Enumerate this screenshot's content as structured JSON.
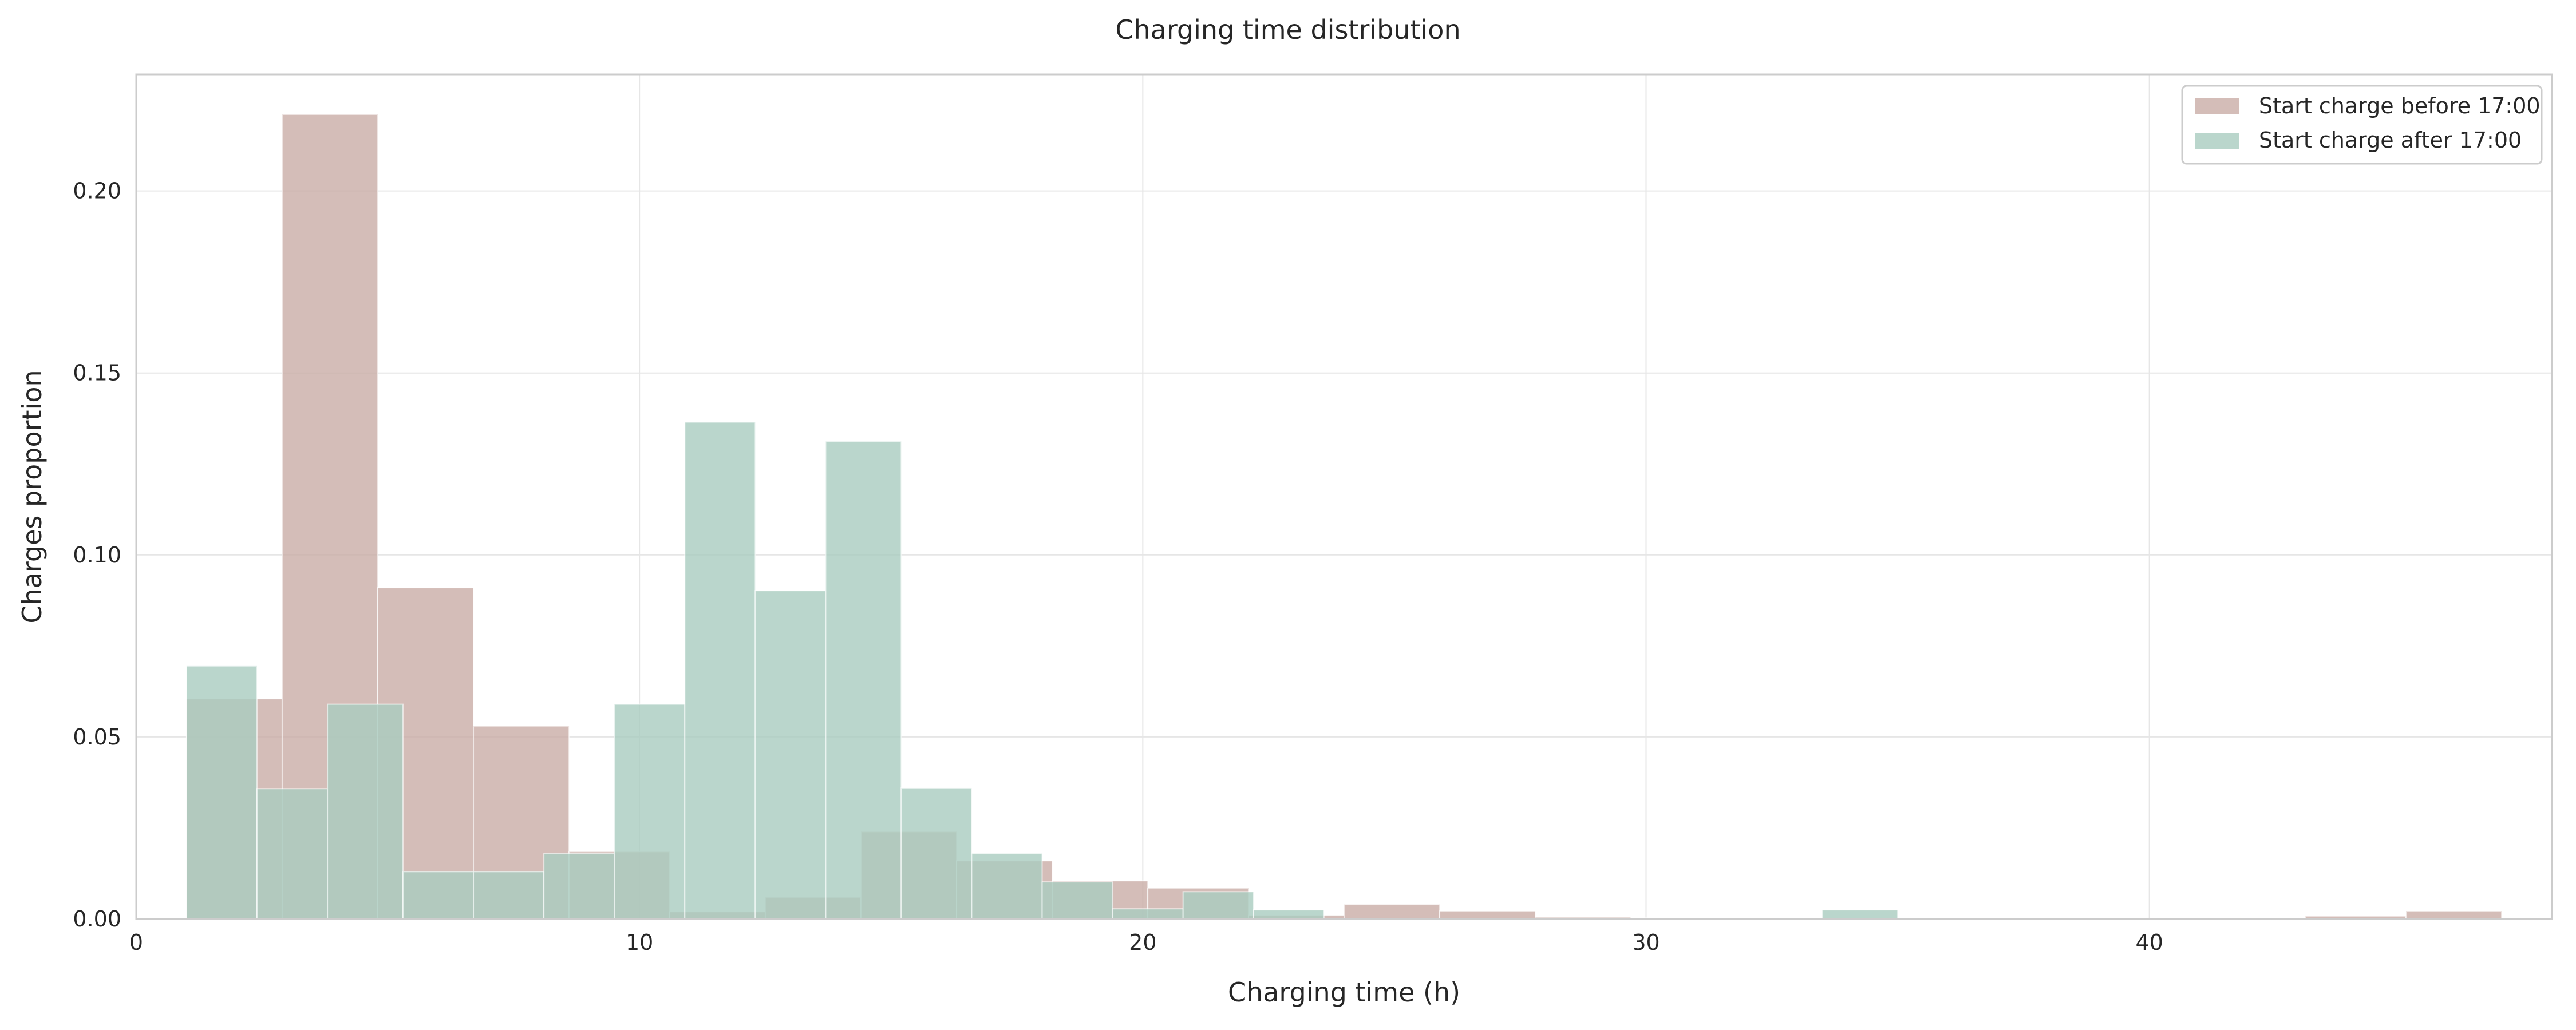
{
  "chart_data": {
    "type": "bar",
    "title": "Charging time distribution",
    "xlabel": "Charging time (h)",
    "ylabel": "Charges proportion",
    "xlim": [
      0,
      48
    ],
    "ylim": [
      0,
      0.232
    ],
    "xticks": [
      0,
      10,
      20,
      30,
      40
    ],
    "yticks": [
      0.0,
      0.05,
      0.1,
      0.15,
      0.2
    ],
    "ytick_labels": [
      "0.00",
      "0.05",
      "0.10",
      "0.15",
      "0.20"
    ],
    "grid": true,
    "legend_position": "top-right",
    "series": [
      {
        "name": "Start charge before 17:00",
        "color": "#c9aca6",
        "bins": [
          {
            "x0": 1.0,
            "x1": 2.9,
            "y": 0.0605
          },
          {
            "x0": 2.9,
            "x1": 4.8,
            "y": 0.221
          },
          {
            "x0": 4.8,
            "x1": 6.7,
            "y": 0.091
          },
          {
            "x0": 6.7,
            "x1": 8.6,
            "y": 0.053
          },
          {
            "x0": 8.6,
            "x1": 10.6,
            "y": 0.0185
          },
          {
            "x0": 10.6,
            "x1": 12.5,
            "y": 0.002
          },
          {
            "x0": 12.5,
            "x1": 14.4,
            "y": 0.006
          },
          {
            "x0": 14.4,
            "x1": 16.3,
            "y": 0.024
          },
          {
            "x0": 16.3,
            "x1": 18.2,
            "y": 0.016
          },
          {
            "x0": 18.2,
            "x1": 20.1,
            "y": 0.0105
          },
          {
            "x0": 20.1,
            "x1": 22.1,
            "y": 0.0085
          },
          {
            "x0": 22.1,
            "x1": 24.0,
            "y": 0.001
          },
          {
            "x0": 24.0,
            "x1": 25.9,
            "y": 0.004
          },
          {
            "x0": 25.9,
            "x1": 27.8,
            "y": 0.0022
          },
          {
            "x0": 27.8,
            "x1": 29.7,
            "y": 0.0005
          },
          {
            "x0": 29.7,
            "x1": 31.6,
            "y": 0.0003
          },
          {
            "x0": 31.6,
            "x1": 33.6,
            "y": 0.0002
          },
          {
            "x0": 33.6,
            "x1": 35.5,
            "y": 0.0002
          },
          {
            "x0": 35.5,
            "x1": 37.4,
            "y": 0.0001
          },
          {
            "x0": 37.4,
            "x1": 39.3,
            "y": 0.0001
          },
          {
            "x0": 39.3,
            "x1": 41.2,
            "y": 0.0001
          },
          {
            "x0": 41.2,
            "x1": 43.1,
            "y": 0.0001
          },
          {
            "x0": 43.1,
            "x1": 45.1,
            "y": 0.0008
          },
          {
            "x0": 45.1,
            "x1": 47.0,
            "y": 0.0022
          }
        ]
      },
      {
        "name": "Start charge after 17:00",
        "color": "#a9ccbf",
        "bins": [
          {
            "x0": 1.0,
            "x1": 2.4,
            "y": 0.0695
          },
          {
            "x0": 2.4,
            "x1": 3.8,
            "y": 0.0358
          },
          {
            "x0": 3.8,
            "x1": 5.3,
            "y": 0.059
          },
          {
            "x0": 5.3,
            "x1": 6.7,
            "y": 0.013
          },
          {
            "x0": 6.7,
            "x1": 8.1,
            "y": 0.013
          },
          {
            "x0": 8.1,
            "x1": 9.5,
            "y": 0.018
          },
          {
            "x0": 9.5,
            "x1": 10.9,
            "y": 0.059
          },
          {
            "x0": 10.9,
            "x1": 12.3,
            "y": 0.1365
          },
          {
            "x0": 12.3,
            "x1": 13.7,
            "y": 0.0902
          },
          {
            "x0": 13.7,
            "x1": 15.2,
            "y": 0.1312
          },
          {
            "x0": 15.2,
            "x1": 16.6,
            "y": 0.036
          },
          {
            "x0": 16.6,
            "x1": 18.0,
            "y": 0.018
          },
          {
            "x0": 18.0,
            "x1": 19.4,
            "y": 0.0102
          },
          {
            "x0": 19.4,
            "x1": 20.8,
            "y": 0.0028
          },
          {
            "x0": 20.8,
            "x1": 22.2,
            "y": 0.0075
          },
          {
            "x0": 22.2,
            "x1": 23.6,
            "y": 0.0025
          },
          {
            "x0": 23.6,
            "x1": 25.1,
            "y": 0.0
          },
          {
            "x0": 25.1,
            "x1": 26.5,
            "y": 0.0
          },
          {
            "x0": 26.5,
            "x1": 27.9,
            "y": 0.0
          },
          {
            "x0": 27.9,
            "x1": 29.3,
            "y": 0.0
          },
          {
            "x0": 29.3,
            "x1": 30.7,
            "y": 0.0
          },
          {
            "x0": 30.7,
            "x1": 32.1,
            "y": 0.0
          },
          {
            "x0": 32.1,
            "x1": 33.5,
            "y": 0.0
          },
          {
            "x0": 33.5,
            "x1": 35.0,
            "y": 0.0025
          }
        ]
      }
    ]
  }
}
